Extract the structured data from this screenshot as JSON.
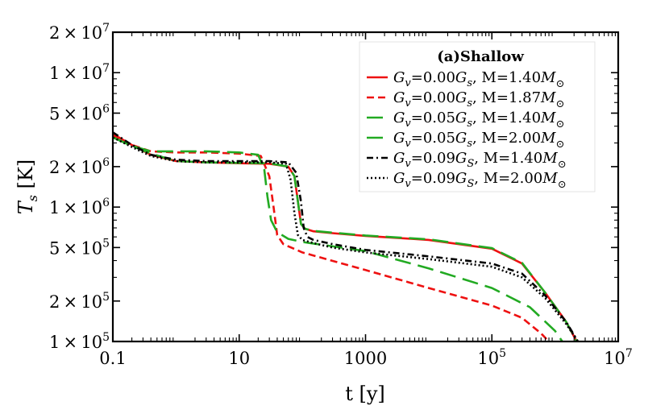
{
  "chart_data": {
    "type": "line",
    "title": "",
    "xlabel": "t [y]",
    "ylabel": "T_s [K]",
    "xscale": "log",
    "yscale": "log",
    "xlim": [
      0.1,
      10000000
    ],
    "ylim": [
      100000,
      20000000
    ],
    "grid": false,
    "legend_title": "(a)Shallow",
    "legend_position": "top-right",
    "xticks": [
      {
        "value": 0.1,
        "label": "0.1"
      },
      {
        "value": 10,
        "label": "10"
      },
      {
        "value": 1000,
        "label": "1000"
      },
      {
        "value": 100000,
        "label_base": "10",
        "label_exp": "5"
      },
      {
        "value": 10000000,
        "label_base": "10",
        "label_exp": "7"
      }
    ],
    "yticks": [
      {
        "value": 100000,
        "mantissa": "1",
        "exp": "5"
      },
      {
        "value": 200000,
        "mantissa": "2",
        "exp": "5"
      },
      {
        "value": 500000,
        "mantissa": "5",
        "exp": "5"
      },
      {
        "value": 1000000,
        "mantissa": "1",
        "exp": "6"
      },
      {
        "value": 2000000,
        "mantissa": "2",
        "exp": "6"
      },
      {
        "value": 5000000,
        "mantissa": "5",
        "exp": "6"
      },
      {
        "value": 10000000,
        "mantissa": "1",
        "exp": "7"
      },
      {
        "value": 20000000,
        "mantissa": "2",
        "exp": "7"
      }
    ],
    "series": [
      {
        "gv": "0.00",
        "gsub": "s",
        "mass": "1.40",
        "color": "#ee1111",
        "dash": "solid",
        "x": [
          0.1,
          0.2,
          0.4,
          1,
          3,
          10,
          30,
          60,
          75,
          85,
          95,
          110,
          150,
          300,
          1000,
          10000,
          100000,
          300000,
          700000,
          1500000,
          2200000
        ],
        "y": [
          3500000,
          2900000,
          2450000,
          2200000,
          2150000,
          2120000,
          2100000,
          2000000,
          1700000,
          1100000,
          750000,
          690000,
          660000,
          640000,
          610000,
          570000,
          490000,
          380000,
          230000,
          140000,
          100000
        ]
      },
      {
        "gv": "0.00",
        "gsub": "s",
        "mass": "1.87",
        "color": "#ee1111",
        "dash": "short",
        "x": [
          0.1,
          0.2,
          0.4,
          1,
          3,
          10,
          22,
          30,
          35,
          40,
          50,
          100,
          1000,
          10000,
          100000,
          300000,
          600000,
          800000
        ],
        "y": [
          3400000,
          2900000,
          2600000,
          2550000,
          2550000,
          2500000,
          2400000,
          1700000,
          1000000,
          620000,
          530000,
          460000,
          340000,
          250000,
          185000,
          150000,
          115000,
          100000
        ]
      },
      {
        "gv": "0.05",
        "gsub": "s",
        "mass": "1.40",
        "color": "#22aa22",
        "dash": "long",
        "x": [
          0.1,
          0.2,
          0.4,
          1,
          3,
          10,
          30,
          60,
          75,
          85,
          95,
          110,
          150,
          300,
          1000,
          10000,
          100000,
          300000,
          700000,
          1500000,
          2200000
        ],
        "y": [
          3300000,
          2850000,
          2500000,
          2200000,
          2150000,
          2130000,
          2120000,
          2000000,
          1700000,
          1100000,
          750000,
          690000,
          665000,
          645000,
          615000,
          575000,
          495000,
          385000,
          230000,
          140000,
          100000
        ]
      },
      {
        "gv": "0.05",
        "gsub": "s",
        "mass": "2.00",
        "color": "#22aa22",
        "dash": "long",
        "x": [
          0.1,
          0.2,
          0.4,
          1,
          3,
          10,
          20,
          25,
          28,
          32,
          40,
          60,
          100,
          1000,
          10000,
          100000,
          400000,
          1000000,
          1300000
        ],
        "y": [
          3300000,
          2850000,
          2600000,
          2600000,
          2600000,
          2550000,
          2450000,
          1900000,
          1200000,
          800000,
          650000,
          580000,
          550000,
          470000,
          350000,
          250000,
          180000,
          120000,
          100000
        ]
      },
      {
        "gv": "0.09",
        "gsub": "S",
        "mass": "1.40",
        "color": "#000000",
        "dash": "dashdot",
        "x": [
          0.1,
          0.2,
          0.4,
          1,
          3,
          10,
          30,
          60,
          80,
          95,
          105,
          120,
          150,
          300,
          1000,
          10000,
          100000,
          300000,
          700000,
          1500000,
          2300000
        ],
        "y": [
          3600000,
          2900000,
          2450000,
          2250000,
          2200000,
          2200000,
          2200000,
          2150000,
          1800000,
          1100000,
          700000,
          600000,
          570000,
          530000,
          480000,
          430000,
          380000,
          320000,
          220000,
          140000,
          100000
        ]
      },
      {
        "gv": "0.09",
        "gsub": "S",
        "mass": "2.00",
        "color": "#000000",
        "dash": "dotted",
        "x": [
          0.1,
          0.2,
          0.4,
          1,
          3,
          10,
          30,
          55,
          65,
          75,
          85,
          100,
          150,
          300,
          1000,
          10000,
          100000,
          300000,
          700000,
          1500000,
          2300000
        ],
        "y": [
          3300000,
          2800000,
          2400000,
          2200000,
          2150000,
          2150000,
          2150000,
          2100000,
          1600000,
          900000,
          620000,
          570000,
          540000,
          500000,
          460000,
          410000,
          360000,
          300000,
          210000,
          135000,
          100000
        ]
      }
    ]
  }
}
